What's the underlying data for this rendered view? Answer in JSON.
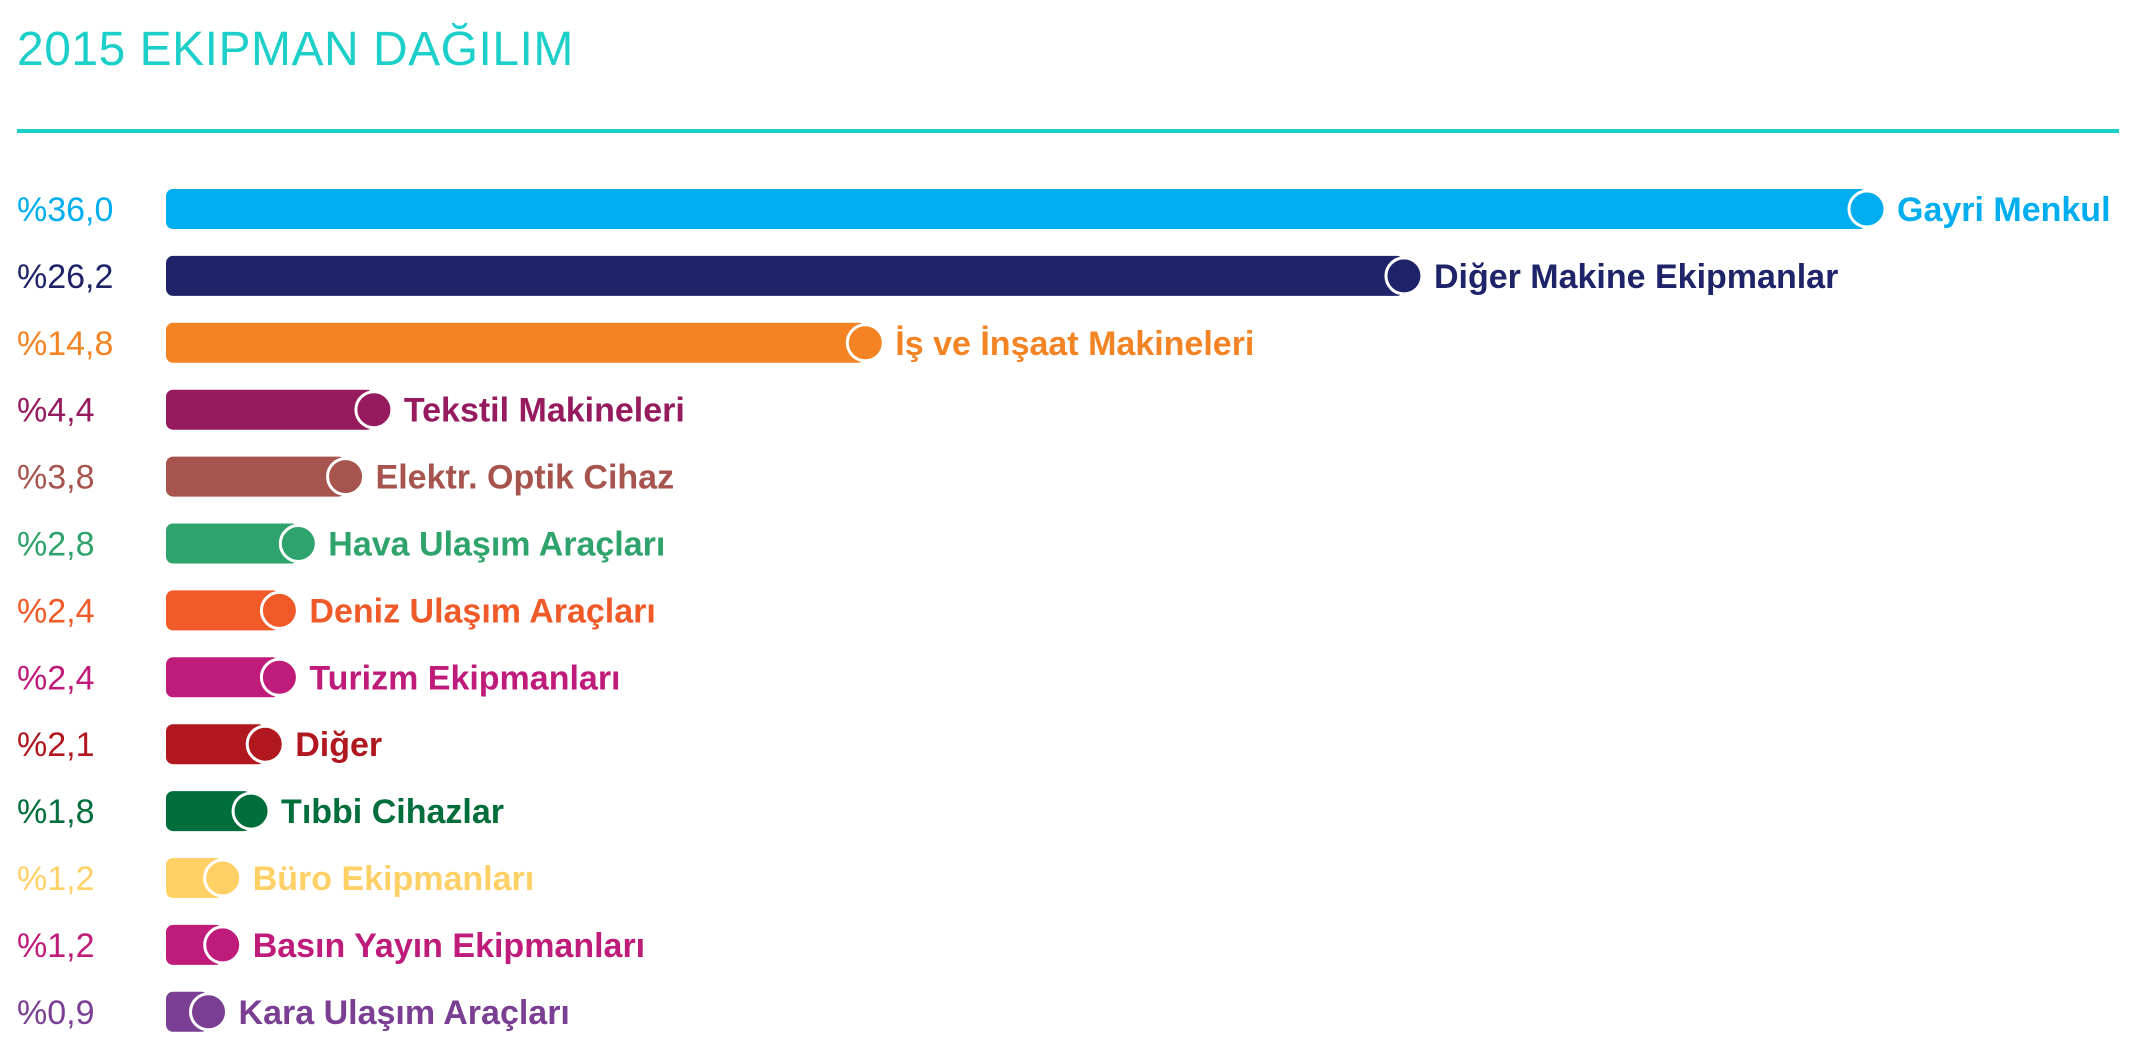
{
  "colors": {
    "title": "#1ccfc9",
    "rule": "#1ccfc9"
  },
  "chart_data": {
    "type": "bar",
    "orientation": "horizontal",
    "title": "2015 EKIPMAN DAĞILIM",
    "xlim": [
      0,
      36.0
    ],
    "grid": false,
    "legend": "none",
    "value_format": "%",
    "items": [
      {
        "label": "Gayri Menkul",
        "value": 36.0,
        "display": "%36,0",
        "color": "#00aeef"
      },
      {
        "label": "Diğer Makine Ekipmanlar",
        "value": 26.2,
        "display": "%26,2",
        "color": "#1f2469"
      },
      {
        "label": "İş ve İnşaat Makineleri",
        "value": 14.8,
        "display": "%14,8",
        "color": "#f48324"
      },
      {
        "label": "Tekstil Makineleri",
        "value": 4.4,
        "display": "%4,4",
        "color": "#961a5e"
      },
      {
        "label": "Elektr. Optik Cihaz",
        "value": 3.8,
        "display": "%3,8",
        "color": "#a6544d"
      },
      {
        "label": "Hava Ulaşım Araçları",
        "value": 2.8,
        "display": "%2,8",
        "color": "#2ea36b"
      },
      {
        "label": "Deniz Ulaşım Araçları",
        "value": 2.4,
        "display": "%2,4",
        "color": "#f05a28"
      },
      {
        "label": "Turizm Ekipmanları",
        "value": 2.4,
        "display": "%2,4",
        "color": "#bf1b7a"
      },
      {
        "label": "Diğer",
        "value": 2.1,
        "display": "%2,1",
        "color": "#b0171f"
      },
      {
        "label": "Tıbbi Cihazlar",
        "value": 1.8,
        "display": "%1,8",
        "color": "#006e3b"
      },
      {
        "label": "Büro Ekipmanları",
        "value": 1.2,
        "display": "%1,2",
        "color": "#ffd066"
      },
      {
        "label": "Basın Yayın Ekipmanları",
        "value": 1.2,
        "display": "%1,2",
        "color": "#bf1b7a"
      },
      {
        "label": "Kara Ulaşım Araçları",
        "value": 0.9,
        "display": "%0,9",
        "color": "#7a3f93"
      }
    ]
  }
}
